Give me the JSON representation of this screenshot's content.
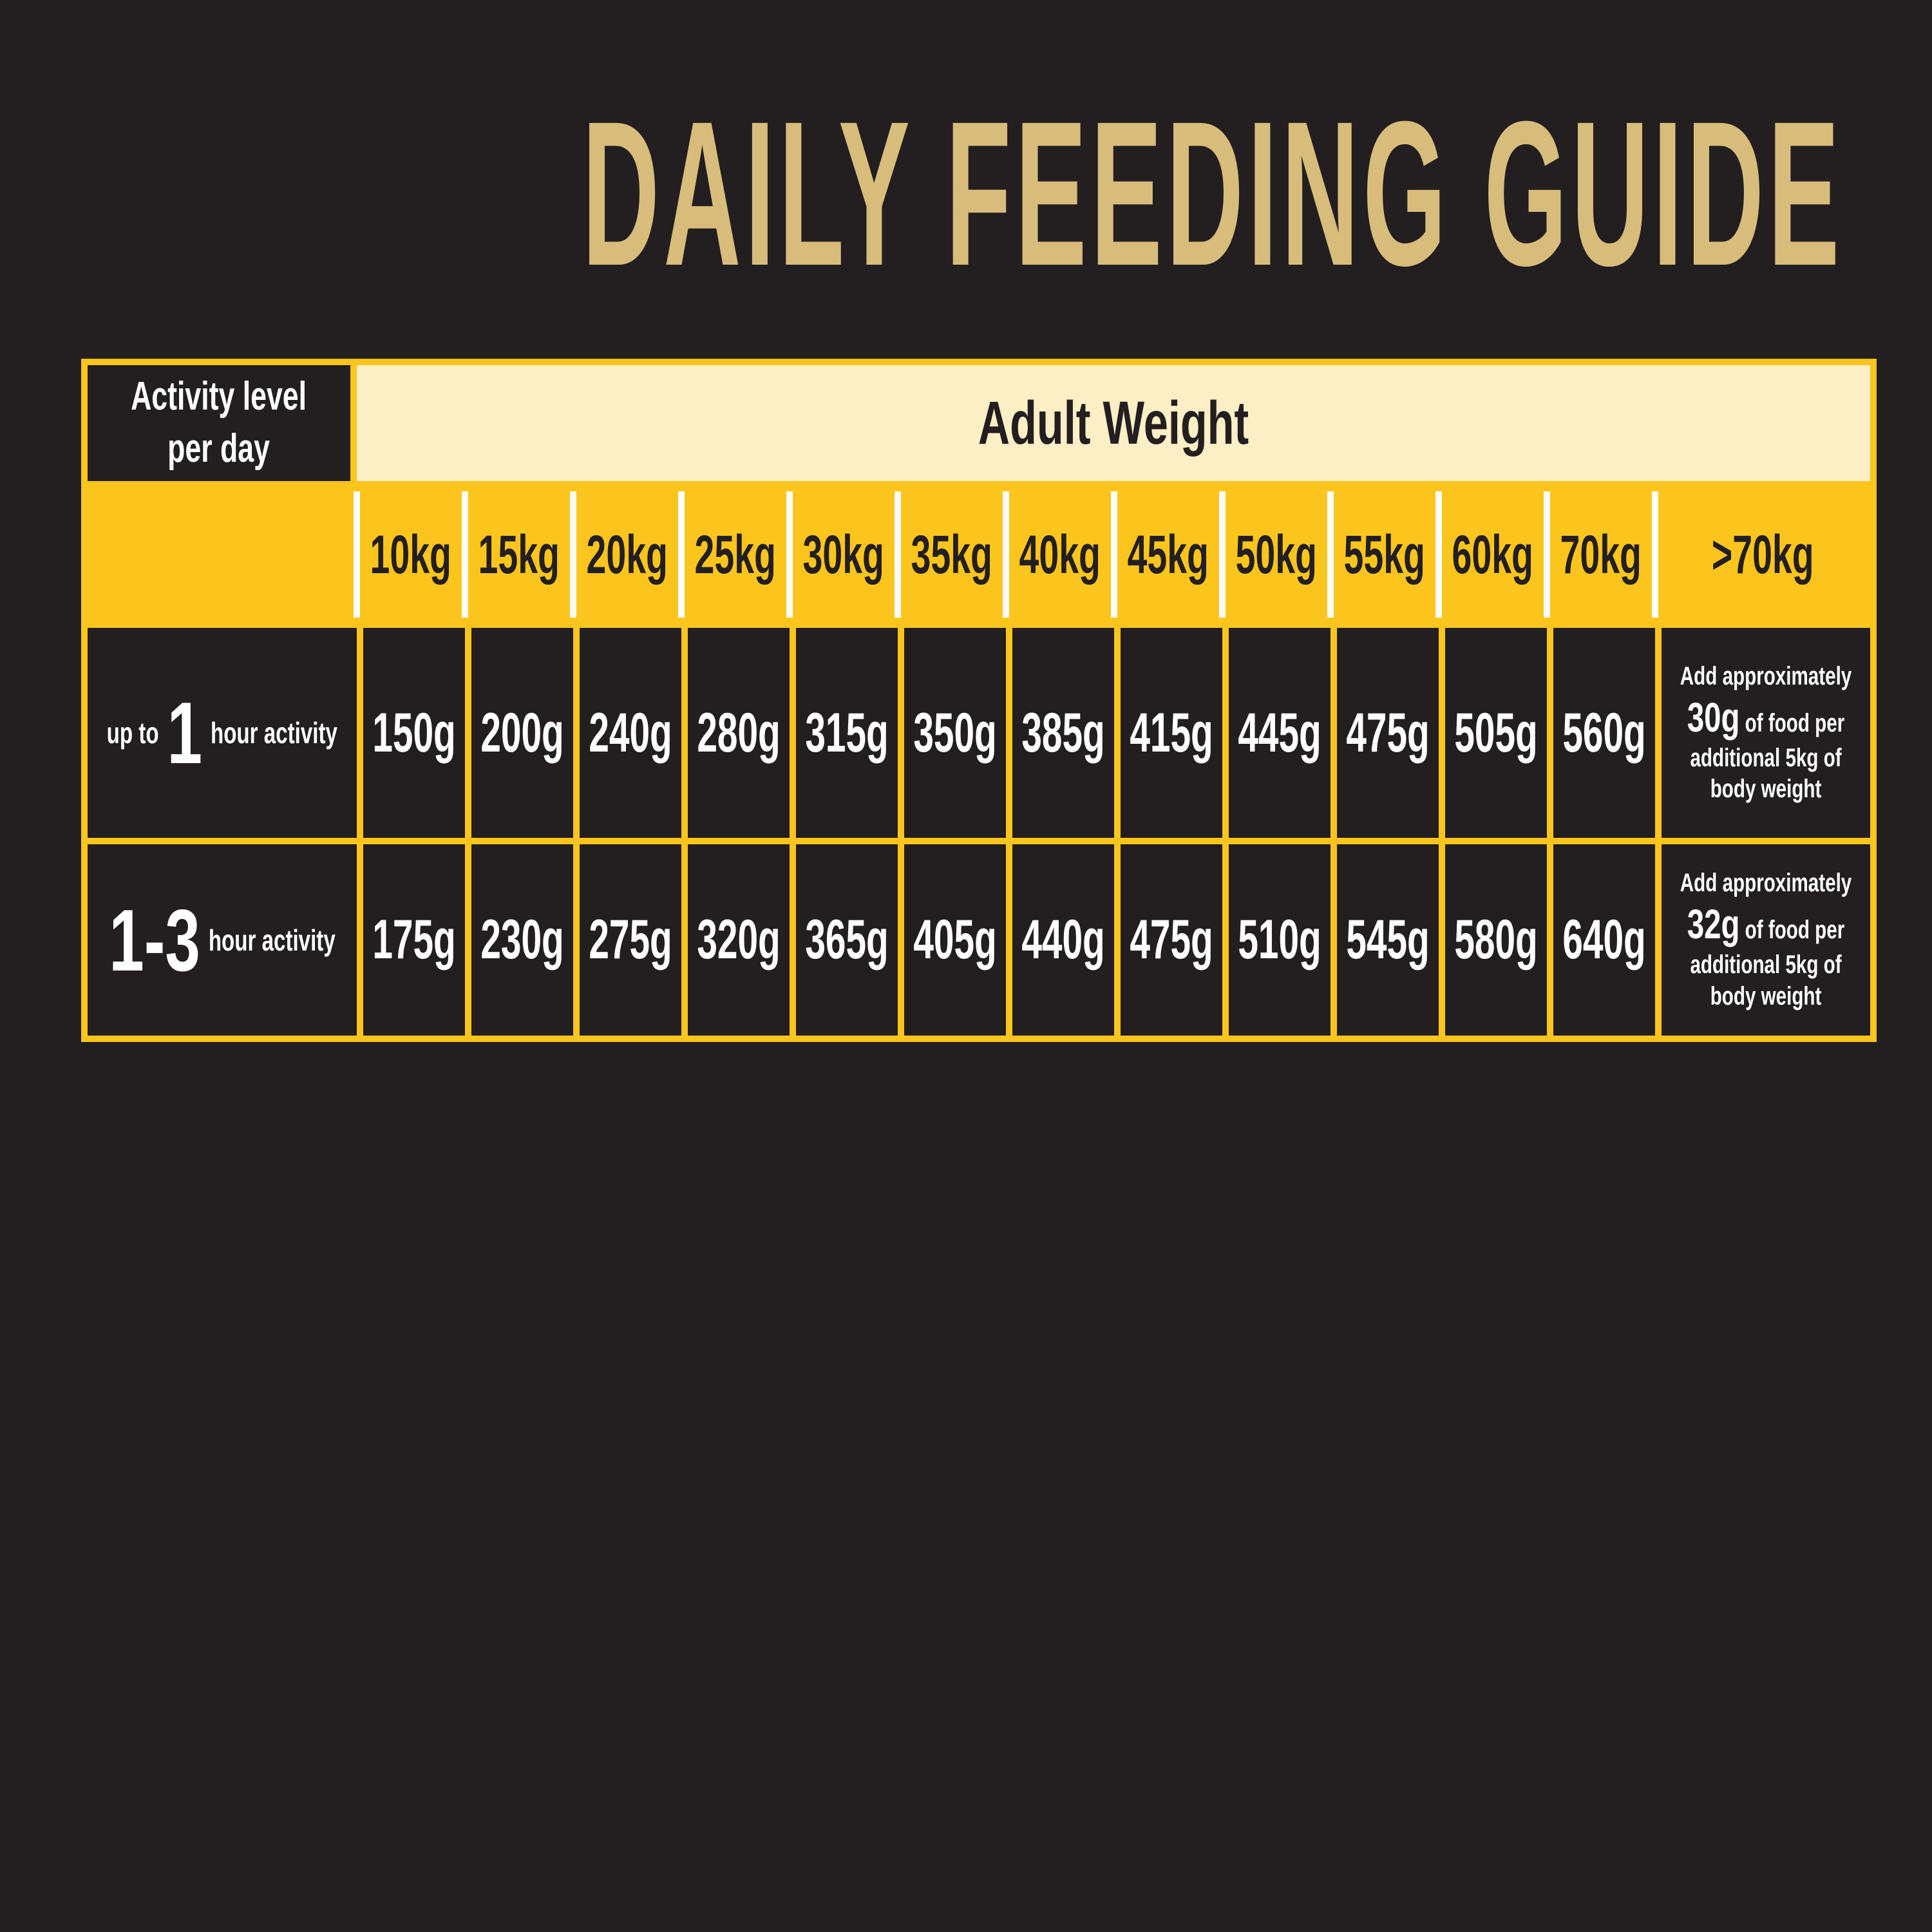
{
  "title": "DAILY FEEDING GUIDE",
  "colors": {
    "background": "#231F20",
    "grid_yellow": "#FBC51D",
    "header_cream": "#FCEFC6",
    "title_gold": "#D8BC7C",
    "text_light": "#FFFFFF",
    "text_dark": "#231F20",
    "divider_white": "#FFFFFF"
  },
  "table": {
    "corner": {
      "line1": "Activity level",
      "line2": "per day"
    },
    "adult_weight_header": "Adult Weight",
    "weights": [
      "10kg",
      "15kg",
      "20kg",
      "25kg",
      "30kg",
      "35kg",
      "40kg",
      "45kg",
      "50kg",
      "55kg",
      "60kg",
      "70kg",
      ">70kg"
    ],
    "rows": [
      {
        "label": {
          "prefix": "up to",
          "big": "1",
          "suffix": "hour activity"
        },
        "values": [
          "150g",
          "200g",
          "240g",
          "280g",
          "315g",
          "350g",
          "385g",
          "415g",
          "445g",
          "475g",
          "505g",
          "560g"
        ],
        "note": {
          "line1": "Add approximately",
          "big": "30g",
          "line2": "of food per",
          "line3": "additional 5kg of",
          "line4": "body weight"
        }
      },
      {
        "label": {
          "prefix": "",
          "big": "1-3",
          "suffix": "hour activity"
        },
        "values": [
          "175g",
          "230g",
          "275g",
          "320g",
          "365g",
          "405g",
          "440g",
          "475g",
          "510g",
          "545g",
          "580g",
          "640g"
        ],
        "note": {
          "line1": "Add approximately",
          "big": "32g",
          "line2": "of food per",
          "line3": "additional 5kg of",
          "line4": "body weight"
        }
      }
    ]
  },
  "chart_data": {
    "type": "table",
    "title": "DAILY FEEDING GUIDE",
    "row_header": "Activity level per day",
    "column_header_group": "Adult Weight",
    "columns": [
      "10kg",
      "15kg",
      "20kg",
      "25kg",
      "30kg",
      "35kg",
      "40kg",
      "45kg",
      "50kg",
      "55kg",
      "60kg",
      "70kg",
      ">70kg"
    ],
    "rows": [
      {
        "activity": "up to 1 hour activity",
        "grams": [
          150,
          200,
          240,
          280,
          315,
          350,
          385,
          415,
          445,
          475,
          505,
          560
        ],
        "over_70kg_rule": "Add approximately 30g of food per additional 5kg of body weight"
      },
      {
        "activity": "1-3 hour activity",
        "grams": [
          175,
          230,
          275,
          320,
          365,
          405,
          440,
          475,
          510,
          545,
          580,
          640
        ],
        "over_70kg_rule": "Add approximately 32g of food per additional 5kg of body weight"
      }
    ]
  }
}
